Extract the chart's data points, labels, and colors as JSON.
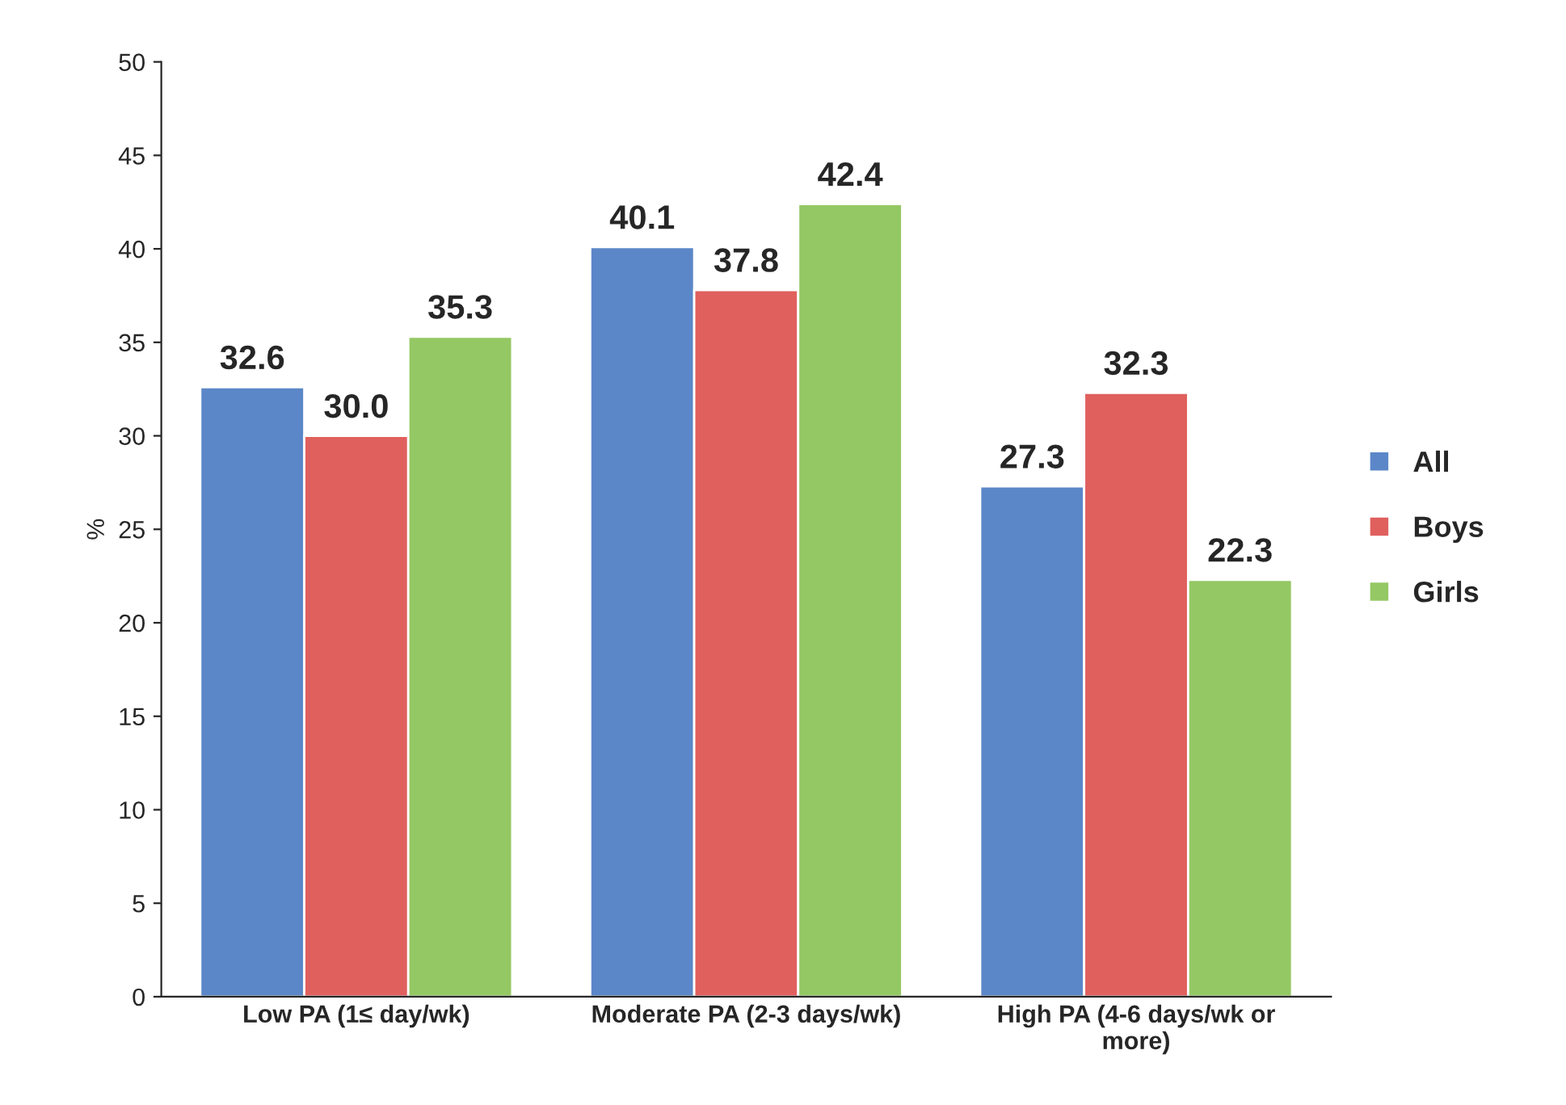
{
  "chart_data": {
    "type": "bar",
    "ylabel": "%",
    "categories": [
      "Low PA (1≤ day/wk)",
      "Moderate PA (2-3 days/wk)",
      "High PA (4-6 days/wk or more)"
    ],
    "series": [
      {
        "name": "All",
        "color": "#5b87c8",
        "values": [
          32.6,
          40.1,
          27.3
        ],
        "value_labels": [
          "32.6",
          "40.1",
          "27.3"
        ]
      },
      {
        "name": "Boys",
        "color": "#e0605e",
        "values": [
          30.0,
          37.8,
          32.3
        ],
        "value_labels": [
          "30.0",
          "37.8",
          "32.3"
        ]
      },
      {
        "name": "Girls",
        "color": "#94c864",
        "values": [
          35.3,
          42.4,
          22.3
        ],
        "value_labels": [
          "35.3",
          "42.4",
          "22.3"
        ]
      }
    ],
    "ylim": [
      0,
      50
    ],
    "yticks": [
      0,
      5,
      10,
      15,
      20,
      25,
      30,
      35,
      40,
      45,
      50
    ],
    "grid": false,
    "legend": "right"
  }
}
